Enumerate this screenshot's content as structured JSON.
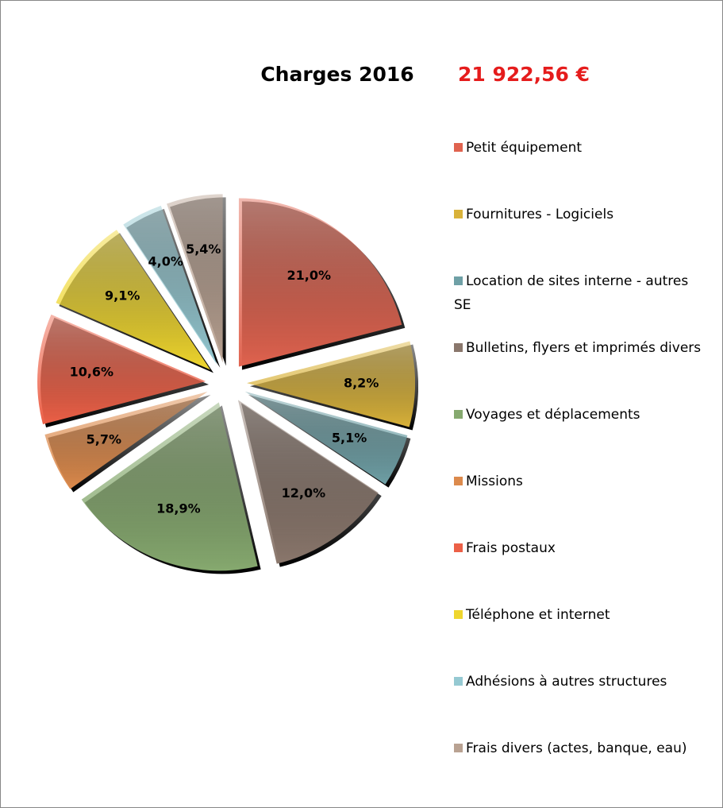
{
  "chart_data": {
    "type": "pie",
    "title": "Charges 2016",
    "subtitle": "21 922,56 €",
    "categories": [
      "Petit équipement",
      "Fournitures - Logiciels",
      "Location de sites interne - autres SE",
      "Bulletins, flyers et imprimés divers",
      "Voyages et déplacements",
      "Missions",
      "Frais postaux",
      "Téléphone et internet",
      "Adhésions à autres structures",
      "Frais divers (actes, banque, eau)"
    ],
    "values": [
      21.0,
      8.2,
      5.1,
      12.0,
      18.9,
      5.7,
      10.6,
      9.1,
      4.0,
      5.4
    ],
    "value_labels": [
      "21,0%",
      "8,2%",
      "5,1%",
      "12,0%",
      "18,9%",
      "5,7%",
      "10,6%",
      "9,1%",
      "4,0%",
      "5,4%"
    ],
    "colors": [
      "#e0634f",
      "#d9b23a",
      "#6fa0a6",
      "#8a776c",
      "#86a96f",
      "#dc8a4c",
      "#ec6047",
      "#efd62e",
      "#95c9d2",
      "#b9a292"
    ],
    "legend": "right"
  }
}
